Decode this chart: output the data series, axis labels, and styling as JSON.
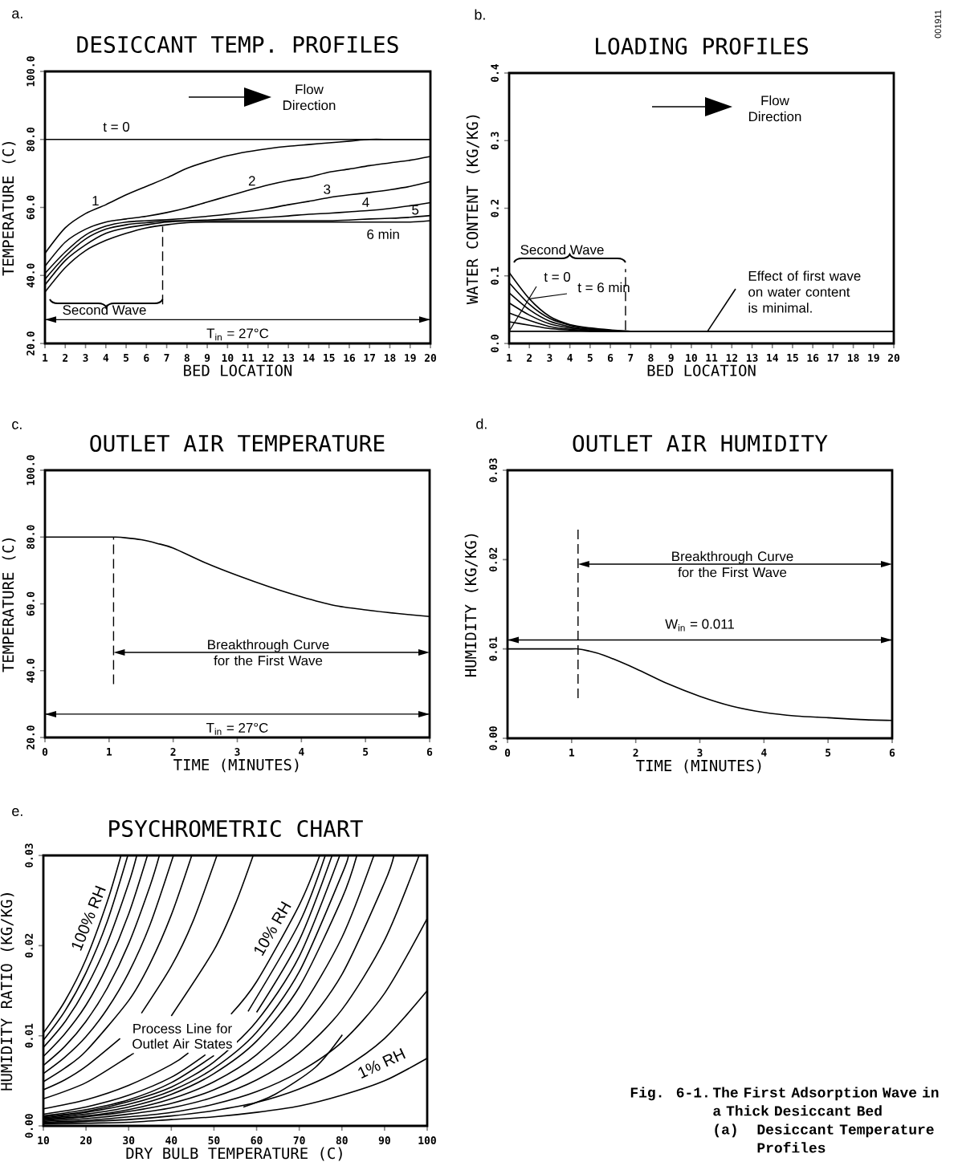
{
  "chart_data": [
    {
      "type": "line",
      "title": "DESICCANT TEMP. PROFILES",
      "xlabel": "BED LOCATION",
      "ylabel": "TEMPERATURE (C)",
      "color": "#000000",
      "xlim": [
        1,
        20
      ],
      "ylim": [
        20,
        100
      ],
      "xticks": [
        1,
        2,
        3,
        4,
        5,
        6,
        7,
        8,
        9,
        10,
        11,
        12,
        13,
        14,
        15,
        16,
        17,
        18,
        19,
        20
      ],
      "yticks": [
        {
          "value": 20,
          "label": "20.0"
        },
        {
          "value": 40,
          "label": "40.0"
        },
        {
          "value": 60,
          "label": "60.0"
        },
        {
          "value": 80,
          "label": "80.0"
        },
        {
          "value": 100,
          "label": "100.0"
        }
      ],
      "x": [
        1,
        2,
        3,
        4,
        5,
        6,
        7,
        8,
        9,
        10,
        11,
        12,
        13,
        14,
        15,
        16,
        17,
        18,
        19,
        20
      ],
      "series": [
        {
          "name": "t = 0",
          "values": [
            80,
            80,
            80,
            80,
            80,
            80,
            80,
            80,
            80,
            80,
            80,
            80,
            80,
            80,
            80,
            80,
            80,
            80,
            80,
            80
          ]
        },
        {
          "name": "1",
          "values": [
            46.5,
            54,
            58.2,
            60.8,
            63.7,
            66.2,
            68.7,
            71.5,
            73.5,
            75.2,
            76.4,
            77.3,
            78,
            78.5,
            79,
            79.5,
            80,
            80,
            80,
            80
          ]
        },
        {
          "name": "2",
          "values": [
            42.7,
            49.8,
            53.6,
            55.7,
            56.6,
            57.4,
            58.5,
            59.9,
            61.6,
            63.3,
            65,
            66.6,
            67.9,
            68.9,
            70.4,
            71.3,
            72.3,
            73.1,
            73.9,
            75
          ]
        },
        {
          "name": "3",
          "values": [
            40.6,
            46.9,
            51.9,
            54.5,
            55.7,
            56.1,
            56.4,
            56.8,
            57.4,
            58,
            58.8,
            59.7,
            60.8,
            61.8,
            62.9,
            63.7,
            64.4,
            65.2,
            66.2,
            67.6
          ]
        },
        {
          "name": "4",
          "values": [
            38.9,
            45.6,
            50.7,
            53.6,
            54.9,
            55.5,
            56,
            56.1,
            56.3,
            56.6,
            56.8,
            57.1,
            57.5,
            58,
            58.3,
            58.7,
            59.1,
            59.7,
            60.5,
            61.4
          ]
        },
        {
          "name": "5",
          "values": [
            37.2,
            44.4,
            49,
            52.4,
            54,
            54.9,
            55.7,
            56,
            56.1,
            56.1,
            56.1,
            56.1,
            56.1,
            56.1,
            56.1,
            56.3,
            56.6,
            56.8,
            57.1,
            57.6
          ]
        },
        {
          "name": "6 min",
          "values": [
            35.1,
            42.3,
            47.3,
            50.3,
            52.4,
            54,
            54.9,
            55.5,
            55.7,
            55.7,
            55.7,
            55.7,
            55.7,
            55.7,
            55.7,
            55.7,
            55.7,
            55.7,
            55.7,
            56.1
          ]
        }
      ],
      "ref_lines": [
        {
          "axis": "y",
          "value": 27,
          "label": "T$_{in}$ = 27°C"
        },
        {
          "axis": "x",
          "value": 6.8,
          "line_style": "dashed"
        }
      ],
      "annotations": [
        "a.",
        "Flow Direction",
        "Second Wave"
      ]
    },
    {
      "type": "line",
      "title": "LOADING PROFILES",
      "xlabel": "BED LOCATION",
      "ylabel": "WATER CONTENT (KG/KG)",
      "color": "#000000",
      "xlim": [
        1,
        20
      ],
      "ylim": [
        0,
        0.4
      ],
      "xticks": [
        1,
        2,
        3,
        4,
        5,
        6,
        7,
        8,
        9,
        10,
        11,
        12,
        13,
        14,
        15,
        16,
        17,
        18,
        19,
        20
      ],
      "yticks": [
        {
          "value": 0,
          "label": "0.0"
        },
        0.1,
        0.2,
        0.3,
        0.4
      ],
      "x": [
        1,
        2,
        3,
        4,
        5,
        6,
        7,
        8,
        9,
        10,
        11,
        12,
        13,
        14,
        15,
        16,
        17,
        18,
        19,
        20
      ],
      "series": [
        {
          "name": "t = 0",
          "values": [
            0.018,
            0.018,
            0.018,
            0.018,
            0.018,
            0.018,
            0.018,
            0.018,
            0.018,
            0.018,
            0.018,
            0.018,
            0.018,
            0.018,
            0.018,
            0.018,
            0.018,
            0.018,
            0.018,
            0.018
          ]
        },
        {
          "values": [
            0.032,
            0.027,
            0.022,
            0.02,
            0.018,
            0.018,
            0.018,
            0.018,
            0.018,
            0.018,
            0.018,
            0.018,
            0.018,
            0.018,
            0.018,
            0.018,
            0.018,
            0.018,
            0.018,
            0.018
          ]
        },
        {
          "values": [
            0.045,
            0.034,
            0.025,
            0.021,
            0.019,
            0.018,
            0.018,
            0.018,
            0.018,
            0.018,
            0.018,
            0.018,
            0.018,
            0.018,
            0.018,
            0.018,
            0.018,
            0.018,
            0.018,
            0.018
          ]
        },
        {
          "values": [
            0.06,
            0.042,
            0.029,
            0.023,
            0.02,
            0.018,
            0.018,
            0.018,
            0.018,
            0.018,
            0.018,
            0.018,
            0.018,
            0.018,
            0.018,
            0.018,
            0.018,
            0.018,
            0.018,
            0.018
          ]
        },
        {
          "values": [
            0.075,
            0.05,
            0.033,
            0.025,
            0.021,
            0.019,
            0.018,
            0.018,
            0.018,
            0.018,
            0.018,
            0.018,
            0.018,
            0.018,
            0.018,
            0.018,
            0.018,
            0.018,
            0.018,
            0.018
          ]
        },
        {
          "values": [
            0.09,
            0.058,
            0.037,
            0.027,
            0.022,
            0.019,
            0.018,
            0.018,
            0.018,
            0.018,
            0.018,
            0.018,
            0.018,
            0.018,
            0.018,
            0.018,
            0.018,
            0.018,
            0.018,
            0.018
          ]
        },
        {
          "name": "t = 6 min",
          "values": [
            0.105,
            0.066,
            0.04,
            0.028,
            0.023,
            0.02,
            0.018,
            0.018,
            0.018,
            0.018,
            0.018,
            0.018,
            0.018,
            0.018,
            0.018,
            0.018,
            0.018,
            0.018,
            0.018,
            0.018
          ]
        }
      ],
      "ref_lines": [
        {
          "axis": "x",
          "value": 6.75,
          "line_style": "dashed"
        }
      ],
      "annotations": [
        "b.",
        "Flow Direction",
        "Second Wave",
        "001911",
        {
          "text": "Effect of first wave on water content is minimal.",
          "x": 10.8,
          "y": 0.018
        }
      ]
    },
    {
      "type": "line",
      "title": "OUTLET AIR TEMPERATURE",
      "xlabel": "TIME (MINUTES)",
      "ylabel": "TEMPERATURE (C)",
      "color": "#000000",
      "xlim": [
        0,
        6
      ],
      "ylim": [
        20,
        100
      ],
      "xticks": [
        0,
        1,
        2,
        3,
        4,
        5,
        6
      ],
      "yticks": [
        {
          "value": 20,
          "label": "20.0"
        },
        {
          "value": 40,
          "label": "40.0"
        },
        {
          "value": 60,
          "label": "60.0"
        },
        {
          "value": 80,
          "label": "80.0"
        },
        {
          "value": 100,
          "label": "100.0"
        }
      ],
      "x": [
        0,
        0.5,
        1,
        1.1,
        1.25,
        1.5,
        1.75,
        2,
        2.5,
        3,
        3.5,
        4,
        4.5,
        5,
        5.5,
        6
      ],
      "series": [
        {
          "values": [
            80,
            80,
            80,
            80,
            79.8,
            79.2,
            78.1,
            76.7,
            72.3,
            68.5,
            65.1,
            62.1,
            59.6,
            58.2,
            57.1,
            56.2
          ]
        }
      ],
      "ref_lines": [
        {
          "axis": "y",
          "value": 27,
          "label": "T$_{in}$ = 27°C"
        },
        {
          "axis": "x",
          "value": 1.07,
          "line_style": "dashed"
        }
      ],
      "annotations": [
        "c.",
        "Breakthrough Curve for the First Wave"
      ]
    },
    {
      "type": "line",
      "title": "OUTLET AIR HUMIDITY",
      "xlabel": "TIME (MINUTES)",
      "ylabel": "HUMIDITY (KG/KG)",
      "color": "#000000",
      "xlim": [
        0,
        6
      ],
      "ylim": [
        0,
        0.03
      ],
      "xticks": [
        0,
        1,
        2,
        3,
        4,
        5,
        6
      ],
      "yticks": [
        {
          "value": 0,
          "label": "0.00"
        },
        0.01,
        0.02,
        0.03
      ],
      "x": [
        0,
        0.5,
        1,
        1.1,
        1.25,
        1.5,
        2,
        2.5,
        3,
        3.5,
        4,
        4.5,
        5,
        5.5,
        6
      ],
      "series": [
        {
          "values": [
            0.01,
            0.01,
            0.01,
            0.01,
            0.0098,
            0.0093,
            0.0078,
            0.0061,
            0.0047,
            0.0036,
            0.0029,
            0.0025,
            0.0023,
            0.0021,
            0.002
          ]
        }
      ],
      "ref_lines": [
        {
          "axis": "y",
          "value": 0.011,
          "label": "W$_{in}$ = 0.011"
        },
        {
          "axis": "x",
          "value": 1.1,
          "line_style": "dashed"
        }
      ],
      "annotations": [
        "d.",
        "Breakthrough Curve for the First Wave"
      ]
    },
    {
      "type": "line",
      "title": "PSYCHROMETRIC CHART",
      "xlabel": "DRY BULB TEMPERATURE (C)",
      "ylabel": "HUMIDITY RATIO (KG/KG)",
      "color": "#000000",
      "xlim": [
        10,
        100
      ],
      "ylim": [
        0,
        0.03
      ],
      "xticks": [
        10,
        20,
        30,
        40,
        50,
        60,
        70,
        80,
        90,
        100
      ],
      "yticks": [
        {
          "value": 0,
          "label": "0.00"
        },
        0.01,
        0.02,
        0.03
      ],
      "series": [
        {
          "name": "100% RH",
          "x": [
            10,
            15,
            20,
            25,
            28.2
          ],
          "values": [
            0.0103,
            0.0138,
            0.0185,
            0.0249,
            0.03
          ]
        },
        {
          "x": [
            10,
            15,
            20,
            25,
            29.8
          ],
          "values": [
            0.0095,
            0.0127,
            0.017,
            0.0227,
            0.03
          ]
        },
        {
          "x": [
            10,
            15,
            20,
            25,
            30,
            31.9
          ],
          "values": [
            0.0087,
            0.0115,
            0.0153,
            0.0203,
            0.0269,
            0.03
          ]
        },
        {
          "x": [
            10,
            15,
            20,
            25,
            30,
            34.4
          ],
          "values": [
            0.0077,
            0.0102,
            0.0134,
            0.0178,
            0.0235,
            0.03
          ]
        },
        {
          "x": [
            10,
            15,
            20,
            25,
            30,
            35,
            37.2
          ],
          "values": [
            0.0067,
            0.0088,
            0.0116,
            0.0153,
            0.0202,
            0.0266,
            0.03
          ]
        },
        {
          "x": [
            10,
            15,
            20,
            25,
            30,
            35,
            40.5
          ],
          "values": [
            0.0058,
            0.0076,
            0.0099,
            0.013,
            0.017,
            0.0223,
            0.03
          ]
        },
        {
          "x": [
            10,
            15,
            20,
            30,
            35,
            40,
            44.8
          ],
          "values": [
            0.0049,
            0.0064,
            0.0083,
            0.0139,
            0.018,
            0.0234,
            0.03
          ]
        },
        {
          "x": [
            10,
            15,
            20,
            28,
            30,
            33,
            40,
            45,
            50.7
          ],
          "values": [
            0.004,
            0.0051,
            0.0066,
            0.0097,
            null,
            0.0125,
            0.0177,
            0.0226,
            0.03
          ]
        },
        {
          "x": [
            10,
            20,
            30,
            31,
            35,
            40,
            50,
            55,
            59.2
          ],
          "values": [
            0.003,
            0.0048,
            0.0077,
            0.008,
            null,
            0.0122,
            0.0195,
            0.0246,
            0.03
          ]
        },
        {
          "name": "10% RH",
          "x": [
            10,
            20,
            30,
            40,
            44,
            50,
            54,
            60,
            70,
            74.8
          ],
          "values": [
            0.0019,
            0.0029,
            0.0045,
            0.0068,
            0.0081,
            null,
            0.0124,
            0.016,
            0.0245,
            0.03
          ]
        },
        {
          "x": [
            10,
            20,
            30,
            40,
            48,
            52,
            58,
            70,
            76.1
          ],
          "values": [
            0.0013,
            0.0021,
            0.0034,
            0.0054,
            0.0079,
            null,
            0.0127,
            0.0225,
            0.03
          ]
        },
        {
          "x": [
            10,
            20,
            30,
            40,
            50,
            54,
            60,
            70,
            77.7
          ],
          "values": [
            0.0011,
            0.0018,
            0.0029,
            0.0048,
            0.0078,
            null,
            0.0126,
            0.0206,
            0.03
          ]
        },
        {
          "x": [
            10,
            20,
            30,
            40,
            50,
            60,
            70,
            79.5
          ],
          "values": [
            0.001,
            0.0016,
            0.0027,
            0.0043,
            0.0071,
            0.0116,
            0.0188,
            0.03
          ]
        },
        {
          "x": [
            10,
            20,
            30,
            40,
            50,
            60,
            70,
            80,
            81.5
          ],
          "values": [
            0.0009,
            0.0015,
            0.0024,
            0.0039,
            0.0064,
            0.0104,
            0.0171,
            0.0279,
            0.03
          ]
        },
        {
          "x": [
            10,
            20,
            30,
            40,
            50,
            60,
            70,
            80,
            83.5
          ],
          "values": [
            0.0008,
            0.0013,
            0.0021,
            0.0035,
            0.0058,
            0.0094,
            0.0154,
            0.0252,
            0.03
          ]
        },
        {
          "x": [
            10,
            20,
            30,
            40,
            50,
            60,
            70,
            80,
            87.5
          ],
          "values": [
            0.0007,
            0.0011,
            0.0018,
            0.003,
            0.0049,
            0.0079,
            0.0128,
            0.0209,
            0.03
          ]
        },
        {
          "x": [
            10,
            20,
            30,
            40,
            50,
            60,
            70,
            80,
            90,
            92.2
          ],
          "values": [
            0.0006,
            0.001,
            0.0016,
            0.0025,
            0.004,
            0.0065,
            0.0104,
            0.0168,
            0.027,
            0.03
          ]
        },
        {
          "x": [
            10,
            20,
            30,
            40,
            50,
            60,
            70,
            80,
            90,
            98.1
          ],
          "values": [
            0.0005,
            0.0008,
            0.0013,
            0.002,
            0.0032,
            0.0051,
            0.0081,
            0.0129,
            0.0206,
            0.03
          ]
        },
        {
          "x": [
            10,
            20,
            30,
            40,
            50,
            60,
            70,
            80,
            90,
            100
          ],
          "values": [
            0.0004,
            0.0006,
            0.001,
            0.0015,
            0.0024,
            0.0038,
            0.006,
            0.0093,
            0.0147,
            0.023
          ]
        },
        {
          "x": [
            10,
            20,
            30,
            40,
            50,
            60,
            70,
            80,
            90,
            100
          ],
          "values": [
            0.0003,
            0.0005,
            0.0007,
            0.0011,
            0.0017,
            0.0026,
            0.0041,
            0.0063,
            0.0097,
            0.015
          ]
        },
        {
          "name": "1% RH",
          "x": [
            10,
            20,
            30,
            40,
            50,
            60,
            70,
            80,
            90,
            100
          ],
          "values": [
            0.0002,
            0.0003,
            0.0004,
            0.0007,
            0.001,
            0.0015,
            0.0022,
            0.0034,
            0.005,
            0.0075
          ]
        },
        {
          "x": [
            56.9,
            64.3,
            73.8,
            80.1
          ],
          "values": [
            0.0021,
            0.0035,
            0.0065,
            0.0101
          ]
        }
      ],
      "annotations": [
        "e.",
        "Process Line for Outlet Air States",
        "Fig. 6-1.",
        "The First Adsorption Wave in a Thick Desiccant Bed",
        "(a)",
        "Desiccant Temperature Profiles"
      ]
    }
  ]
}
